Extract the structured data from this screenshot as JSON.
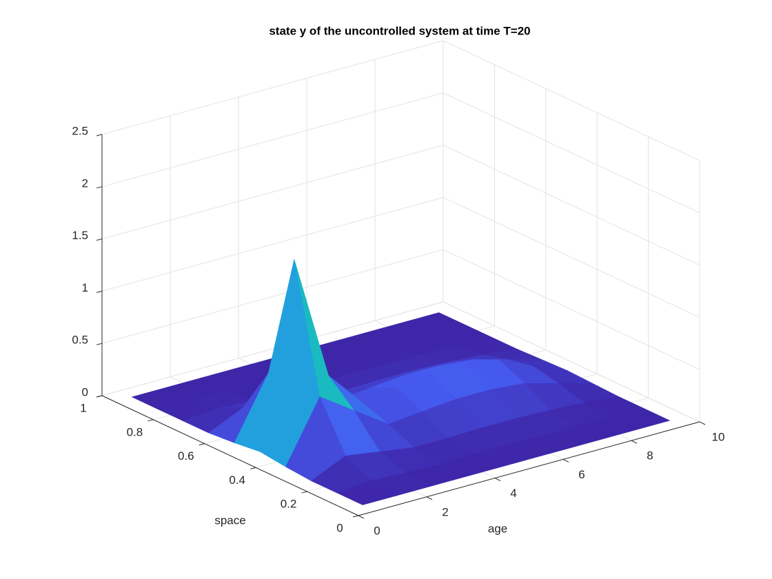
{
  "chart_data": {
    "type": "surface",
    "title": "state y of the uncontrolled system at time T=20",
    "xlabel": "age",
    "ylabel": "space",
    "x": [
      0.5,
      1.5,
      2.5,
      3.5,
      4.5,
      5.5,
      6.5,
      7.5,
      8.5,
      9.5
    ],
    "y": [
      0.05,
      0.15,
      0.25,
      0.35,
      0.45,
      0.55,
      0.65,
      0.75,
      0.85,
      0.95
    ],
    "z": [
      [
        0,
        0,
        0,
        0,
        0,
        0,
        0,
        0,
        0,
        0
      ],
      [
        0,
        0.03,
        0.01,
        0,
        0.01,
        0.01,
        0.01,
        0.01,
        0,
        0
      ],
      [
        0,
        0.15,
        0.1,
        0.05,
        0.05,
        0.06,
        0.06,
        0.05,
        0.03,
        0
      ],
      [
        0.02,
        0.6,
        0.38,
        0.16,
        0.19,
        0.22,
        0.22,
        0.19,
        0.1,
        0.01
      ],
      [
        0.05,
        1.8,
        0.6,
        0.25,
        0.3,
        0.35,
        0.35,
        0.3,
        0.15,
        0.02
      ],
      [
        0.02,
        0.6,
        0.38,
        0.16,
        0.19,
        0.22,
        0.22,
        0.19,
        0.1,
        0.01
      ],
      [
        0,
        0.15,
        0.1,
        0.05,
        0.05,
        0.06,
        0.06,
        0.05,
        0.03,
        0
      ],
      [
        0,
        0.03,
        0.01,
        0,
        0.01,
        0.01,
        0.01,
        0.01,
        0,
        0
      ],
      [
        0,
        0,
        0,
        0,
        0,
        0,
        0,
        0,
        0,
        0
      ],
      [
        0,
        0,
        0,
        0,
        0,
        0,
        0,
        0,
        0,
        0
      ]
    ],
    "xlim": [
      0,
      10
    ],
    "ylim": [
      0,
      1
    ],
    "zlim": [
      0,
      2.5
    ],
    "xticks": [
      0,
      2,
      4,
      6,
      8,
      10
    ],
    "yticks": [
      0,
      0.2,
      0.4,
      0.6,
      0.8,
      1
    ],
    "zticks": [
      0,
      0.5,
      1,
      1.5,
      2,
      2.5
    ],
    "grid": true,
    "colormap": "parula"
  }
}
